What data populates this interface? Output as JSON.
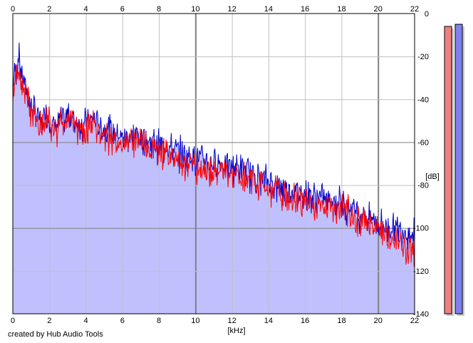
{
  "credit": "created by Hub Audio Tools",
  "chart_data": {
    "type": "line",
    "xlabel": "[kHz]",
    "ylabel": "[dB]",
    "xlim": [
      0,
      22
    ],
    "ylim": [
      -140,
      0
    ],
    "x_ticks": [
      "0",
      "2",
      "4",
      "6",
      "8",
      "10",
      "12",
      "14",
      "16",
      "18",
      "20",
      "22"
    ],
    "y_ticks": [
      "0",
      "-20",
      "-40",
      "-60",
      "-80",
      "-100",
      "-120",
      "-140"
    ],
    "x_tick_values": [
      0,
      2,
      4,
      6,
      8,
      10,
      12,
      14,
      16,
      18,
      20,
      22
    ],
    "y_tick_values": [
      0,
      -20,
      -40,
      -60,
      -80,
      -100,
      -120,
      -140
    ],
    "grid": true,
    "x_tick_position": "top and bottom",
    "y_tick_position": "right",
    "colors": {
      "fill": "#c0c0ff",
      "grid": "#c0c0c0",
      "major_grid": "#808080",
      "left_channel": "#ff0000",
      "right_channel": "#0000cc",
      "left_meter": "#f08080",
      "right_meter": "#8080f0"
    },
    "series": [
      {
        "channel": "left",
        "color": "#ff0000",
        "x": [
          0.0,
          0.1,
          0.2,
          0.3,
          0.4,
          0.5,
          0.6,
          0.8,
          1.0,
          1.2,
          1.4,
          1.6,
          1.8,
          2.0,
          2.2,
          2.4,
          2.6,
          2.8,
          3.0,
          3.3,
          3.6,
          4.0,
          4.4,
          4.8,
          5.2,
          5.6,
          6.0,
          6.4,
          6.8,
          7.2,
          7.6,
          8.0,
          8.5,
          9.0,
          9.5,
          10.0,
          10.5,
          11.0,
          11.5,
          12.0,
          12.5,
          13.0,
          13.5,
          14.0,
          14.5,
          15.0,
          15.5,
          16.0,
          16.5,
          17.0,
          17.5,
          18.0,
          18.5,
          19.0,
          19.5,
          20.0,
          20.5,
          21.0,
          21.5,
          22.0
        ],
        "y": [
          -42,
          -28,
          -30,
          -25,
          -28,
          -32,
          -35,
          -38,
          -45,
          -48,
          -50,
          -52,
          -48,
          -50,
          -53,
          -55,
          -50,
          -52,
          -48,
          -50,
          -53,
          -52,
          -50,
          -55,
          -56,
          -58,
          -60,
          -58,
          -57,
          -60,
          -61,
          -62,
          -64,
          -66,
          -68,
          -70,
          -71,
          -72,
          -73,
          -74,
          -75,
          -76,
          -78,
          -80,
          -82,
          -84,
          -85,
          -86,
          -87,
          -88,
          -89,
          -90,
          -92,
          -95,
          -97,
          -100,
          -103,
          -105,
          -107,
          -108
        ]
      },
      {
        "channel": "right",
        "color": "#0000cc",
        "x": [
          0.0,
          0.1,
          0.2,
          0.3,
          0.4,
          0.5,
          0.6,
          0.8,
          1.0,
          1.2,
          1.4,
          1.6,
          1.8,
          2.0,
          2.2,
          2.4,
          2.6,
          2.8,
          3.0,
          3.3,
          3.6,
          4.0,
          4.4,
          4.8,
          5.2,
          5.6,
          6.0,
          6.4,
          6.8,
          7.2,
          7.6,
          8.0,
          8.5,
          9.0,
          9.5,
          10.0,
          10.5,
          11.0,
          11.5,
          12.0,
          12.5,
          13.0,
          13.5,
          14.0,
          14.5,
          15.0,
          15.5,
          16.0,
          16.5,
          17.0,
          17.5,
          18.0,
          18.5,
          19.0,
          19.5,
          20.0,
          20.5,
          21.0,
          21.5,
          22.0
        ],
        "y": [
          -35,
          -24,
          -26,
          -18,
          -23,
          -27,
          -30,
          -36,
          -42,
          -45,
          -47,
          -50,
          -45,
          -48,
          -51,
          -52,
          -47,
          -50,
          -46,
          -48,
          -50,
          -50,
          -48,
          -52,
          -53,
          -55,
          -57,
          -56,
          -55,
          -58,
          -59,
          -60,
          -61,
          -63,
          -65,
          -66,
          -67,
          -68,
          -69,
          -70,
          -71,
          -73,
          -75,
          -77,
          -79,
          -81,
          -82,
          -83,
          -84,
          -85,
          -86,
          -87,
          -89,
          -92,
          -94,
          -97,
          -98,
          -99,
          -100,
          -102
        ]
      }
    ],
    "level_meters": [
      {
        "channel": "left",
        "value_db": -6,
        "color": "#f08080"
      },
      {
        "channel": "right",
        "value_db": -5,
        "color": "#8080f0"
      }
    ]
  }
}
